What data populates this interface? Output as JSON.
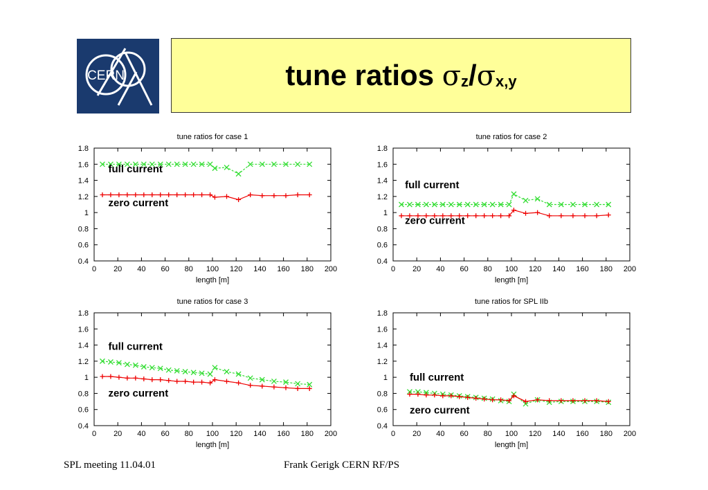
{
  "logo": {
    "text": "CERN"
  },
  "slide": {
    "title_main": "tune ratios ",
    "sigma1": "σ",
    "sub1": "z",
    "slash": "/",
    "sigma2": "σ",
    "sub2": "x,y"
  },
  "footer": {
    "left": "SPL meeting 11.04.01",
    "center": "Frank Gerigk CERN RF/PS"
  },
  "colors": {
    "full": "#33dd33",
    "zero": "#ee0000",
    "frame": "#000000"
  },
  "chart_data": [
    {
      "type": "line",
      "title": "tune ratios for case 1",
      "xlabel": "length [m]",
      "ylabel": "",
      "xlim": [
        0,
        200
      ],
      "ylim": [
        0.4,
        1.8
      ],
      "xticks": [
        "0",
        "20",
        "40",
        "60",
        "80",
        "100",
        "120",
        "140",
        "160",
        "180",
        "200"
      ],
      "yticks": [
        "0.4",
        "0.6",
        "0.8",
        "1",
        "1.2",
        "1.4",
        "1.6",
        "1.8"
      ],
      "series": [
        {
          "name": "full current",
          "marker": "x",
          "color": "#33dd33",
          "x": [
            7,
            14,
            21,
            28,
            35,
            42,
            49,
            56,
            63,
            70,
            77,
            84,
            91,
            98,
            102,
            112,
            122,
            132,
            142,
            152,
            162,
            172,
            182
          ],
          "y": [
            1.6,
            1.6,
            1.6,
            1.6,
            1.6,
            1.6,
            1.6,
            1.6,
            1.6,
            1.6,
            1.6,
            1.6,
            1.6,
            1.6,
            1.55,
            1.56,
            1.48,
            1.6,
            1.6,
            1.6,
            1.6,
            1.6,
            1.6
          ]
        },
        {
          "name": "zero current",
          "marker": "+",
          "color": "#ee0000",
          "x": [
            7,
            14,
            21,
            28,
            35,
            42,
            49,
            56,
            63,
            70,
            77,
            84,
            91,
            98,
            102,
            112,
            122,
            132,
            142,
            152,
            162,
            172,
            182
          ],
          "y": [
            1.22,
            1.22,
            1.22,
            1.22,
            1.22,
            1.22,
            1.22,
            1.22,
            1.22,
            1.22,
            1.22,
            1.22,
            1.22,
            1.22,
            1.19,
            1.2,
            1.16,
            1.22,
            1.21,
            1.21,
            1.21,
            1.22,
            1.22
          ]
        }
      ],
      "annotations": [
        {
          "text": "full current",
          "x": 12,
          "y": 1.5
        },
        {
          "text": "zero current",
          "x": 12,
          "y": 1.08
        }
      ]
    },
    {
      "type": "line",
      "title": "tune ratios for case 2",
      "xlabel": "length [m]",
      "ylabel": "",
      "xlim": [
        0,
        200
      ],
      "ylim": [
        0.4,
        1.8
      ],
      "xticks": [
        "0",
        "20",
        "40",
        "60",
        "80",
        "100",
        "120",
        "140",
        "160",
        "180",
        "200"
      ],
      "yticks": [
        "0.4",
        "0.6",
        "0.8",
        "1",
        "1.2",
        "1.4",
        "1.6",
        "1.8"
      ],
      "series": [
        {
          "name": "full current",
          "marker": "x",
          "color": "#33dd33",
          "x": [
            7,
            14,
            21,
            28,
            35,
            42,
            49,
            56,
            63,
            70,
            77,
            84,
            91,
            98,
            102,
            112,
            122,
            132,
            142,
            152,
            162,
            172,
            182
          ],
          "y": [
            1.1,
            1.1,
            1.1,
            1.1,
            1.1,
            1.1,
            1.1,
            1.1,
            1.1,
            1.1,
            1.1,
            1.1,
            1.1,
            1.1,
            1.23,
            1.15,
            1.17,
            1.1,
            1.1,
            1.1,
            1.1,
            1.1,
            1.1
          ]
        },
        {
          "name": "zero current",
          "marker": "+",
          "color": "#ee0000",
          "x": [
            7,
            14,
            21,
            28,
            35,
            42,
            49,
            56,
            63,
            70,
            77,
            84,
            91,
            98,
            102,
            112,
            122,
            132,
            142,
            152,
            162,
            172,
            182
          ],
          "y": [
            0.96,
            0.96,
            0.96,
            0.96,
            0.96,
            0.96,
            0.96,
            0.96,
            0.96,
            0.96,
            0.96,
            0.96,
            0.96,
            0.96,
            1.03,
            0.99,
            1.0,
            0.96,
            0.96,
            0.96,
            0.96,
            0.96,
            0.97
          ]
        }
      ],
      "annotations": [
        {
          "text": "full current",
          "x": 10,
          "y": 1.3
        },
        {
          "text": "zero current",
          "x": 10,
          "y": 0.86
        }
      ]
    },
    {
      "type": "line",
      "title": "tune ratios for case 3",
      "xlabel": "length [m]",
      "ylabel": "",
      "xlim": [
        0,
        200
      ],
      "ylim": [
        0.4,
        1.8
      ],
      "xticks": [
        "0",
        "20",
        "40",
        "60",
        "80",
        "100",
        "120",
        "140",
        "160",
        "180",
        "200"
      ],
      "yticks": [
        "0.4",
        "0.6",
        "0.8",
        "1",
        "1.2",
        "1.4",
        "1.6",
        "1.8"
      ],
      "series": [
        {
          "name": "full current",
          "marker": "x",
          "color": "#33dd33",
          "x": [
            7,
            14,
            21,
            28,
            35,
            42,
            49,
            56,
            63,
            70,
            77,
            84,
            91,
            98,
            102,
            112,
            122,
            132,
            142,
            152,
            162,
            172,
            182
          ],
          "y": [
            1.2,
            1.19,
            1.18,
            1.16,
            1.15,
            1.13,
            1.12,
            1.11,
            1.09,
            1.08,
            1.07,
            1.06,
            1.05,
            1.04,
            1.12,
            1.07,
            1.04,
            0.99,
            0.97,
            0.95,
            0.94,
            0.92,
            0.91
          ]
        },
        {
          "name": "zero current",
          "marker": "+",
          "color": "#ee0000",
          "x": [
            7,
            14,
            21,
            28,
            35,
            42,
            49,
            56,
            63,
            70,
            77,
            84,
            91,
            98,
            102,
            112,
            122,
            132,
            142,
            152,
            162,
            172,
            182
          ],
          "y": [
            1.01,
            1.01,
            1.0,
            0.99,
            0.99,
            0.98,
            0.97,
            0.97,
            0.96,
            0.95,
            0.95,
            0.94,
            0.94,
            0.93,
            0.97,
            0.95,
            0.93,
            0.9,
            0.89,
            0.88,
            0.87,
            0.86,
            0.86
          ]
        }
      ],
      "annotations": [
        {
          "text": "full current",
          "x": 12,
          "y": 1.34
        },
        {
          "text": "zero current",
          "x": 12,
          "y": 0.76
        }
      ]
    },
    {
      "type": "line",
      "title": "tune ratios for SPL IIb",
      "xlabel": "length [m]",
      "ylabel": "",
      "xlim": [
        0,
        200
      ],
      "ylim": [
        0.4,
        1.8
      ],
      "xticks": [
        "0",
        "20",
        "40",
        "60",
        "80",
        "100",
        "120",
        "140",
        "160",
        "180",
        "200"
      ],
      "yticks": [
        "0.4",
        "0.6",
        "0.8",
        "1",
        "1.2",
        "1.4",
        "1.6",
        "1.8"
      ],
      "series": [
        {
          "name": "full current",
          "marker": "x",
          "color": "#33dd33",
          "x": [
            14,
            21,
            28,
            35,
            42,
            49,
            56,
            63,
            70,
            77,
            84,
            91,
            98,
            102,
            112,
            122,
            132,
            142,
            152,
            162,
            172,
            182
          ],
          "y": [
            0.82,
            0.82,
            0.81,
            0.8,
            0.79,
            0.78,
            0.77,
            0.76,
            0.75,
            0.74,
            0.73,
            0.71,
            0.7,
            0.79,
            0.67,
            0.72,
            0.69,
            0.7,
            0.7,
            0.7,
            0.7,
            0.69
          ]
        },
        {
          "name": "zero current",
          "marker": "+",
          "color": "#ee0000",
          "x": [
            14,
            21,
            28,
            35,
            42,
            49,
            56,
            63,
            70,
            77,
            84,
            91,
            98,
            102,
            112,
            122,
            132,
            142,
            152,
            162,
            172,
            182
          ],
          "y": [
            0.79,
            0.79,
            0.78,
            0.78,
            0.77,
            0.77,
            0.76,
            0.75,
            0.74,
            0.73,
            0.72,
            0.72,
            0.71,
            0.77,
            0.7,
            0.72,
            0.71,
            0.71,
            0.71,
            0.71,
            0.71,
            0.7
          ]
        }
      ],
      "annotations": [
        {
          "text": "full current",
          "x": 14,
          "y": 0.96
        },
        {
          "text": "zero current",
          "x": 14,
          "y": 0.55
        }
      ]
    }
  ]
}
